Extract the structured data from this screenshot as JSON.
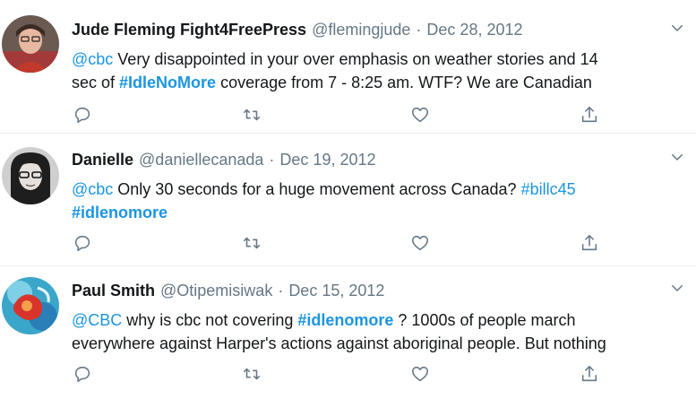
{
  "tweets": [
    {
      "name": "Jude Fleming Fight4FreePress",
      "handle": "@flemingjude",
      "separator": "·",
      "date": "Dec 28, 2012",
      "line1": {
        "mention": "@cbc",
        "text": " Very disappointed in your over emphasis on weather stories and 14"
      },
      "line2": {
        "pre": "sec of ",
        "hashtag": "#IdleNoMore",
        "post": " coverage from 7 - 8:25 am.  WTF?  We are Canadian"
      }
    },
    {
      "name": "Danielle",
      "handle": "@daniellecanada",
      "separator": "·",
      "date": "Dec 19, 2012",
      "line1": {
        "mention": "@cbc",
        "text": " Only 30 seconds for a huge movement across Canada? ",
        "link": "#billc45"
      },
      "line2": {
        "hashtag": "#idlenomore"
      }
    },
    {
      "name": "Paul Smith",
      "handle": "@Otipemisiwak",
      "separator": "·",
      "date": "Dec 15, 2012",
      "line1": {
        "mention": "@CBC",
        "text": " why is cbc not covering ",
        "hashtag": "#idlenomore",
        "post": " ? 1000s of people march"
      },
      "line2": {
        "text": "everywhere against Harper's actions against aboriginal people. But nothing"
      }
    }
  ],
  "icons": {
    "reply": "reply-icon",
    "retweet": "retweet-icon",
    "like": "like-icon",
    "share": "share-icon",
    "caret": "chevron-down-icon"
  },
  "colors": {
    "link": "#1b95e0",
    "secondary": "#657786",
    "border": "#e6ecf0"
  }
}
